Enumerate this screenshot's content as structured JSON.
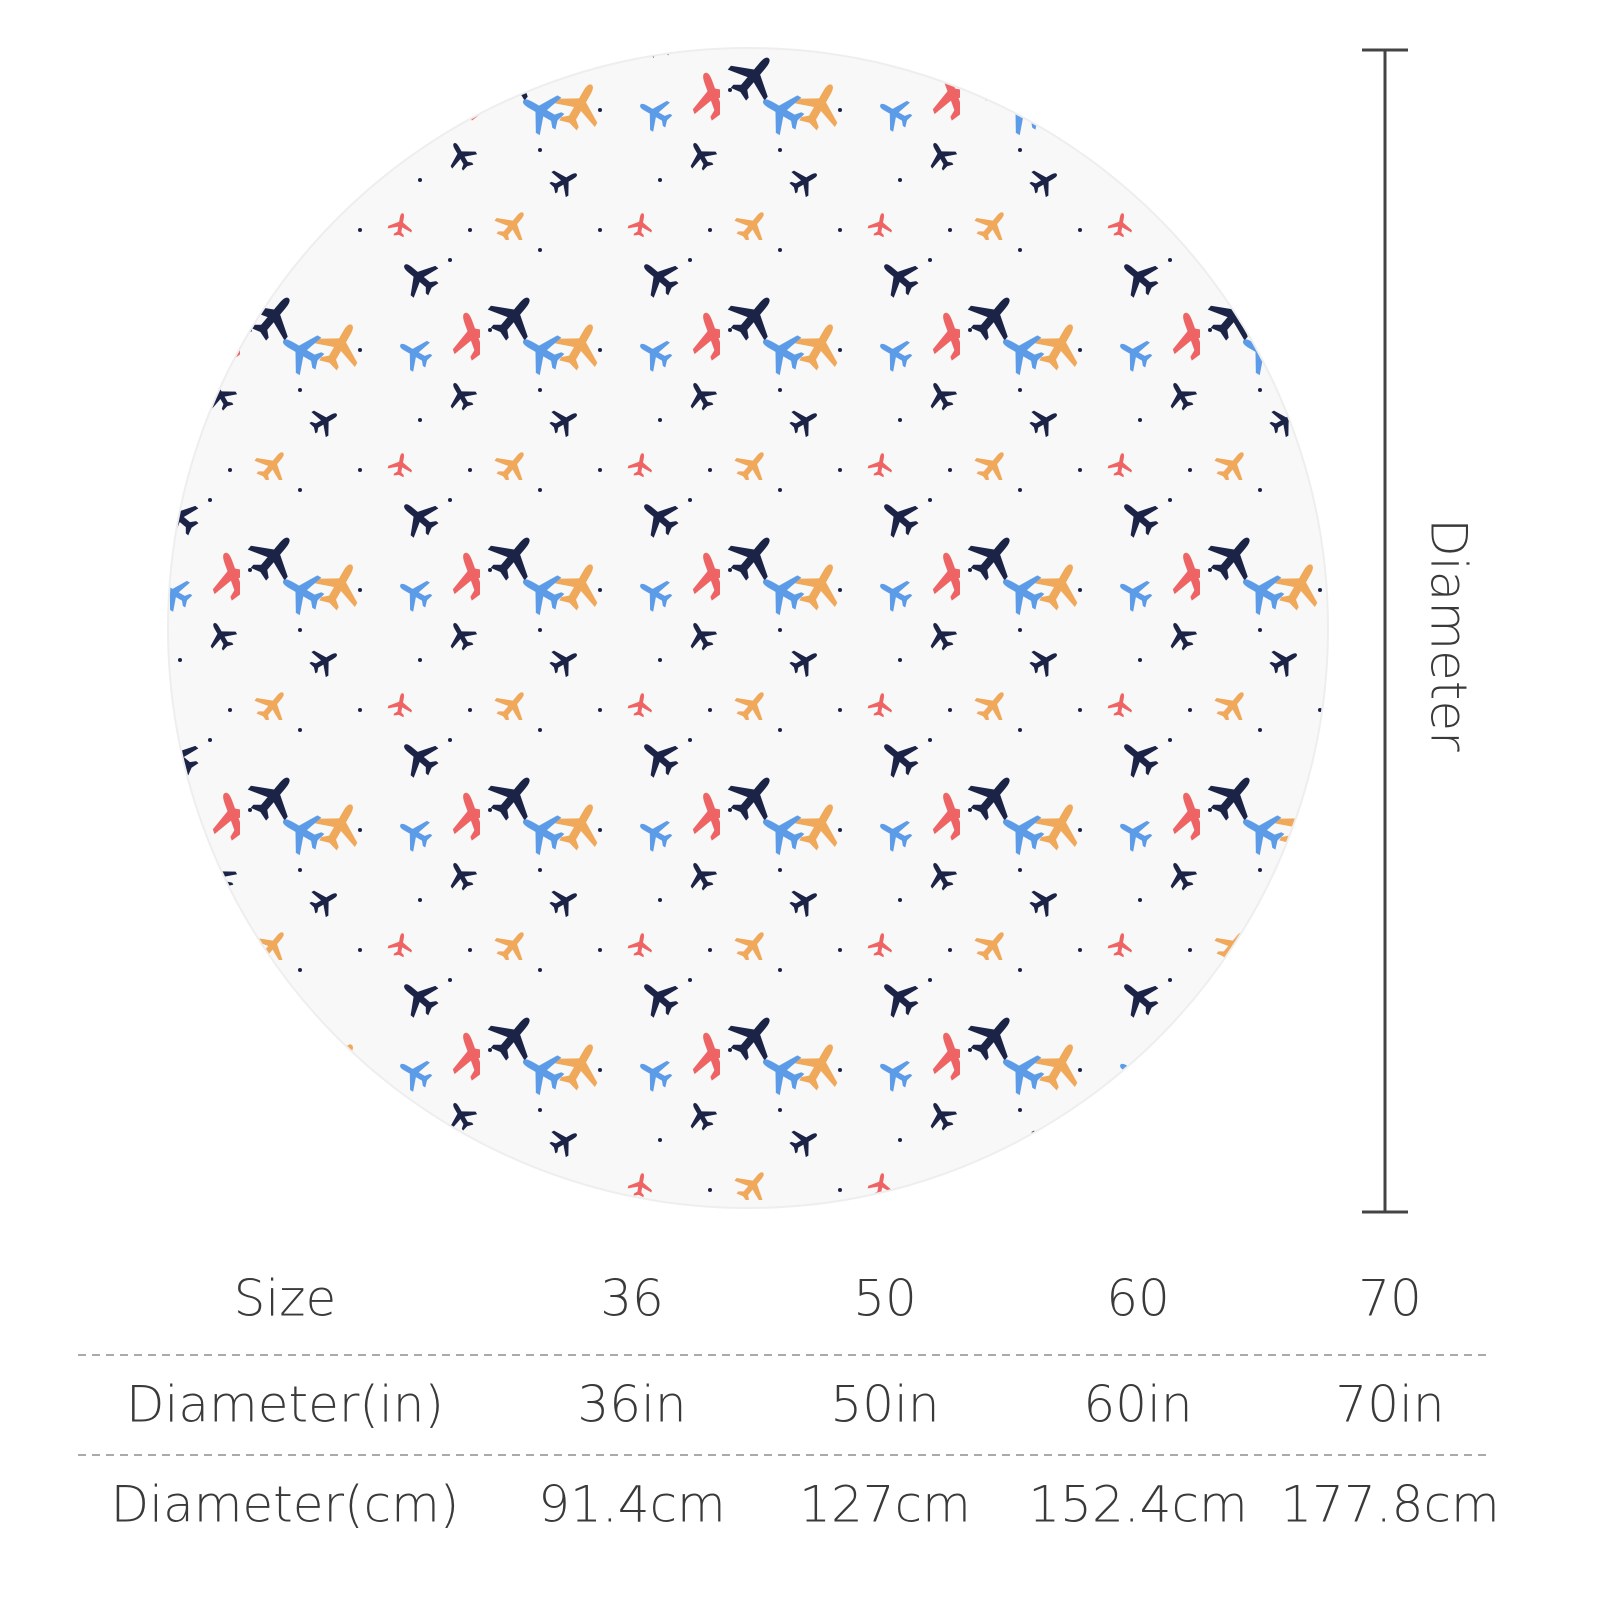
{
  "diameter_label": "Diameter",
  "table": {
    "rows": [
      [
        "Size",
        "36",
        "50",
        "60",
        "70"
      ],
      [
        "Diameter(in)",
        "36in",
        "50in",
        "60in",
        "70in"
      ],
      [
        "Diameter(cm)",
        "91.4cm",
        "127cm",
        "152.4cm",
        "177.8cm"
      ]
    ]
  }
}
